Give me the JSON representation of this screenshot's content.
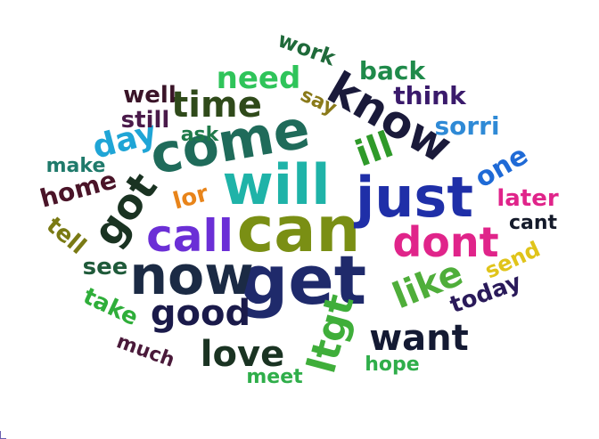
{
  "wordcloud": {
    "words": [
      {
        "text": "get",
        "color": "#1f2a6b"
      },
      {
        "text": "can",
        "color": "#7a8f14"
      },
      {
        "text": "will",
        "color": "#1fb3a8"
      },
      {
        "text": "now",
        "color": "#1b2a44"
      },
      {
        "text": "come",
        "color": "#1f6b5a"
      },
      {
        "text": "just",
        "color": "#1f2fa8"
      },
      {
        "text": "call",
        "color": "#6b2fd6"
      },
      {
        "text": "know",
        "color": "#1a1a3a"
      },
      {
        "text": "got",
        "color": "#1a3322"
      },
      {
        "text": "dont",
        "color": "#e0248a"
      },
      {
        "text": "like",
        "color": "#4fae3a"
      },
      {
        "text": "good",
        "color": "#1a1a4a"
      },
      {
        "text": "ltgt",
        "color": "#3fae3a"
      },
      {
        "text": "want",
        "color": "#141a33"
      },
      {
        "text": "love",
        "color": "#1a3322"
      },
      {
        "text": "time",
        "color": "#2f4a1a"
      },
      {
        "text": "day",
        "color": "#1fa5d6"
      },
      {
        "text": "ill",
        "color": "#2f9a2a"
      },
      {
        "text": "need",
        "color": "#2fc45a"
      },
      {
        "text": "home",
        "color": "#4a1428"
      },
      {
        "text": "one",
        "color": "#1f6ad6"
      },
      {
        "text": "think",
        "color": "#3a1a6b"
      },
      {
        "text": "sorri",
        "color": "#2f8ad6"
      },
      {
        "text": "later",
        "color": "#e0248a"
      },
      {
        "text": "back",
        "color": "#1f8a4a"
      },
      {
        "text": "well",
        "color": "#3a1428"
      },
      {
        "text": "still",
        "color": "#4a1a4a"
      },
      {
        "text": "make",
        "color": "#1f7a6b"
      },
      {
        "text": "work",
        "color": "#1f6a3a"
      },
      {
        "text": "today",
        "color": "#2a1a5a"
      },
      {
        "text": "send",
        "color": "#e0c41a"
      },
      {
        "text": "take",
        "color": "#2fae3a"
      },
      {
        "text": "see",
        "color": "#1f5a3a"
      },
      {
        "text": "tell",
        "color": "#7a7a14"
      },
      {
        "text": "lor",
        "color": "#e8841a"
      },
      {
        "text": "ask",
        "color": "#1f7a4a"
      },
      {
        "text": "say",
        "color": "#8a7a1a"
      },
      {
        "text": "much",
        "color": "#4a1a3a"
      },
      {
        "text": "hope",
        "color": "#2fae4a"
      },
      {
        "text": "meet",
        "color": "#2fae4a"
      },
      {
        "text": "cant",
        "color": "#141a2a"
      }
    ]
  }
}
